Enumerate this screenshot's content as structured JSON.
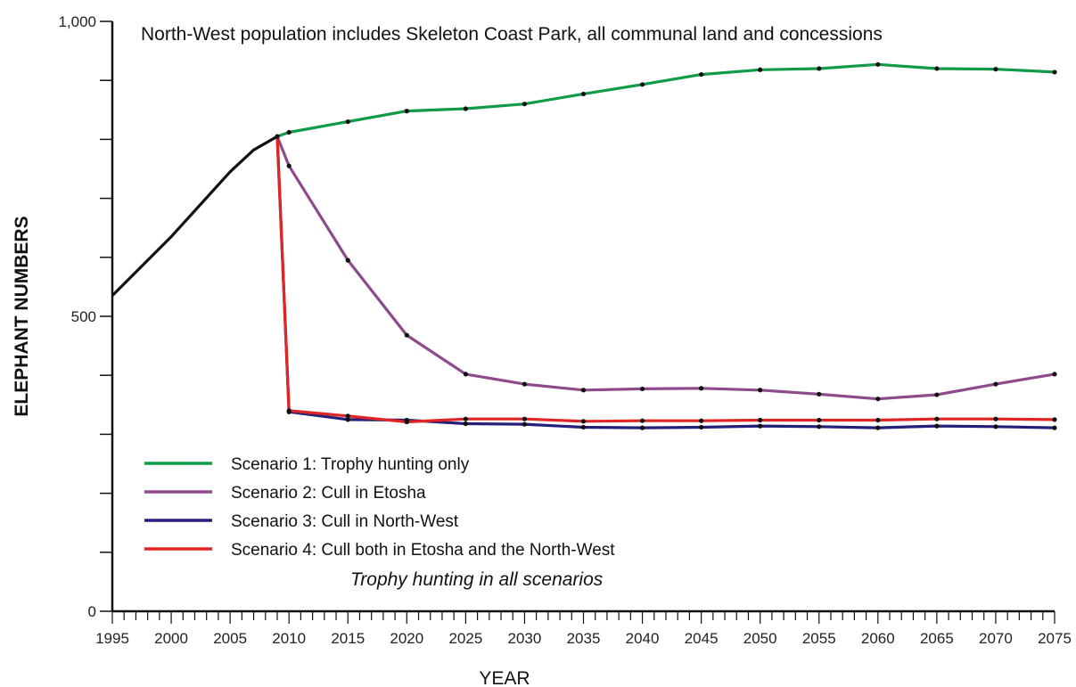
{
  "chart_data": {
    "type": "line",
    "title": "",
    "annotation": "North-West population includes Skeleton Coast Park, all communal land and concessions",
    "xlabel": "YEAR",
    "ylabel": "ELEPHANT NUMBERS",
    "xlim": [
      1995,
      2075
    ],
    "ylim": [
      0,
      1000
    ],
    "x_ticks": [
      "1995",
      "2000",
      "2005",
      "2010",
      "2015",
      "2020",
      "2025",
      "2030",
      "2035",
      "2040",
      "2045",
      "2050",
      "2055",
      "2060",
      "2065",
      "2070",
      "2075"
    ],
    "y_ticks": [
      "0",
      "500",
      "1,000"
    ],
    "grid": false,
    "legend_position": "bottom-left",
    "legend_note": "Trophy hunting in all scenarios",
    "historical": {
      "color": "#111111",
      "x": [
        1995,
        2000,
        2005,
        2007,
        2009
      ],
      "y": [
        535,
        635,
        745,
        782,
        805
      ]
    },
    "series": [
      {
        "name": "Scenario 1:  Trophy hunting only",
        "color": "#0f9b48",
        "x": [
          2009,
          2010,
          2015,
          2020,
          2025,
          2030,
          2035,
          2040,
          2045,
          2050,
          2055,
          2060,
          2065,
          2070,
          2075
        ],
        "y": [
          805,
          812,
          830,
          848,
          852,
          860,
          877,
          893,
          910,
          918,
          920,
          927,
          920,
          919,
          914
        ]
      },
      {
        "name": "Scenario 2:  Cull in Etosha",
        "color": "#8e4a8b",
        "x": [
          2009,
          2010,
          2015,
          2020,
          2025,
          2030,
          2035,
          2040,
          2045,
          2050,
          2055,
          2060,
          2065,
          2070,
          2075
        ],
        "y": [
          805,
          755,
          595,
          468,
          402,
          385,
          375,
          377,
          378,
          375,
          368,
          360,
          367,
          385,
          402
        ]
      },
      {
        "name": "Scenario 3:  Cull in North-West",
        "color": "#231f7a",
        "x": [
          2009,
          2010,
          2015,
          2020,
          2025,
          2030,
          2035,
          2040,
          2045,
          2050,
          2055,
          2060,
          2065,
          2070,
          2075
        ],
        "y": [
          805,
          338,
          325,
          324,
          318,
          317,
          312,
          311,
          312,
          314,
          313,
          311,
          314,
          313,
          311
        ]
      },
      {
        "name": "Scenario 4:  Cull both in Etosha and the North-West",
        "color": "#e02525",
        "x": [
          2009,
          2010,
          2015,
          2020,
          2025,
          2030,
          2035,
          2040,
          2045,
          2050,
          2055,
          2060,
          2065,
          2070,
          2075
        ],
        "y": [
          805,
          340,
          331,
          321,
          326,
          326,
          322,
          323,
          323,
          324,
          324,
          324,
          326,
          326,
          325
        ]
      }
    ]
  }
}
